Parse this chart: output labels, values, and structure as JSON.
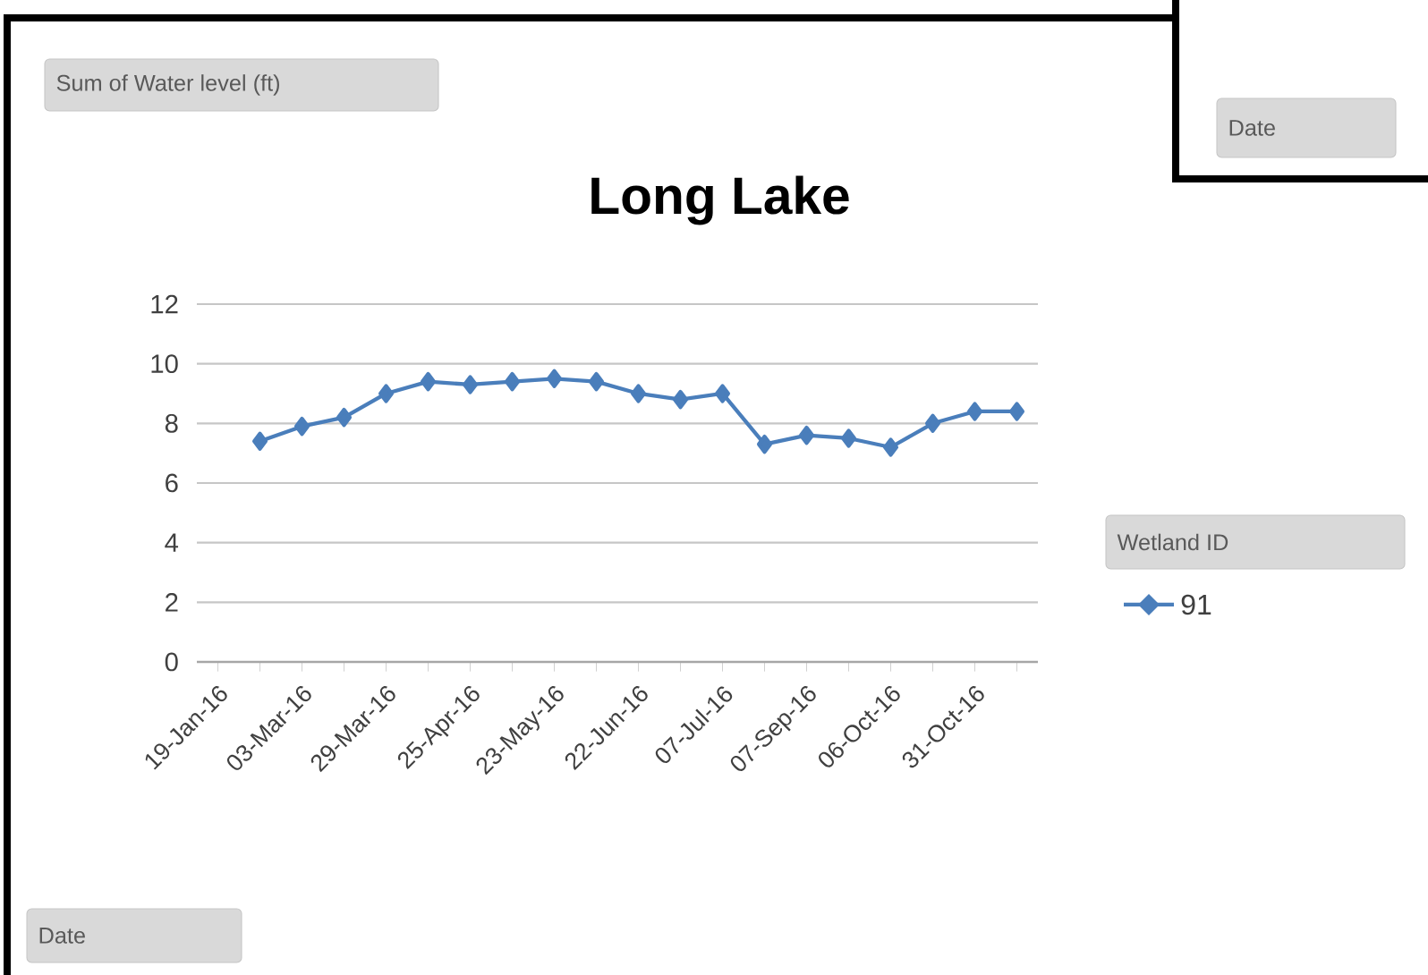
{
  "chart_data": {
    "type": "line",
    "title": "Long Lake",
    "legend_title": "Wetland ID",
    "annotations": [
      "Sum of Water level (ft)",
      "Date",
      "Date"
    ],
    "categories": [
      "19-Jan-16",
      null,
      "03-Mar-16",
      null,
      "29-Mar-16",
      null,
      "25-Apr-16",
      null,
      "23-May-16",
      null,
      "22-Jun-16",
      null,
      "07-Jul-16",
      null,
      "07-Sep-16",
      null,
      "06-Oct-16",
      null,
      "31-Oct-16",
      null
    ],
    "series": [
      {
        "name": "91",
        "color": "#4a7ebb",
        "values": [
          null,
          7.4,
          7.9,
          8.2,
          9.0,
          9.4,
          9.3,
          9.4,
          9.5,
          9.4,
          9.0,
          8.8,
          9.0,
          7.3,
          7.6,
          7.5,
          7.2,
          8.0,
          8.4,
          8.4
        ]
      }
    ],
    "ylim": [
      0,
      12
    ],
    "yticks": [
      0,
      2,
      4,
      6,
      8,
      10,
      12
    ],
    "grid": "y",
    "legend": "right",
    "marker": "diamond",
    "line_style": "solid"
  }
}
